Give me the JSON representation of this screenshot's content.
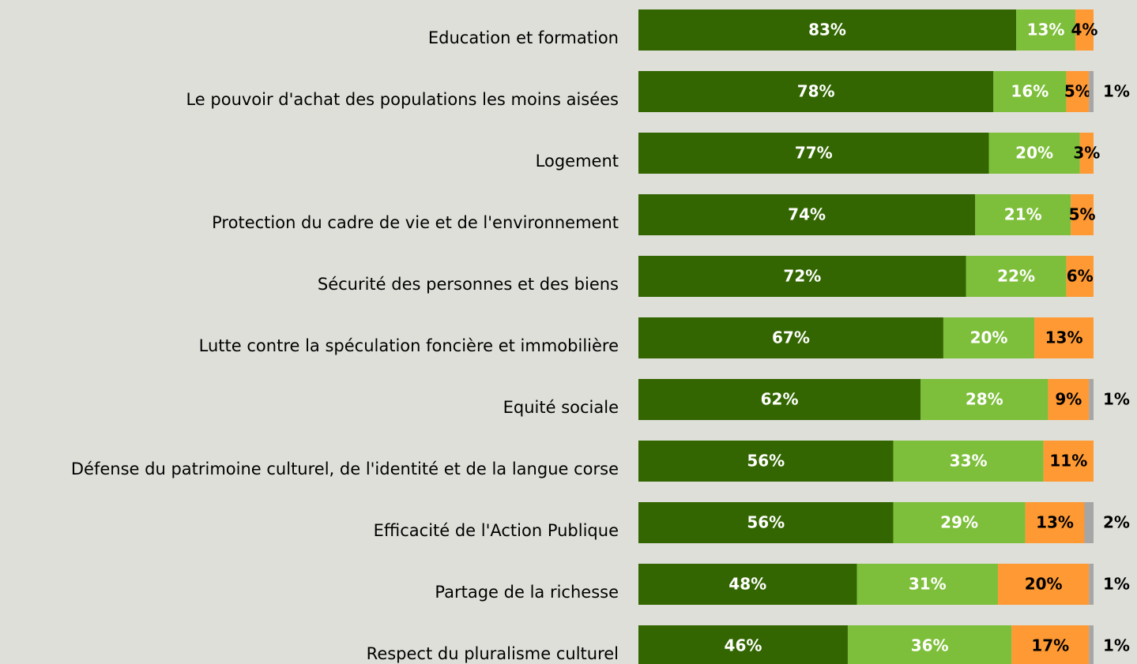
{
  "chart_data": {
    "type": "stacked-bar-horizontal",
    "categories": [
      "Education et formation",
      "Le pouvoir d'achat des populations les moins aisées",
      "Logement",
      "Protection du cadre de vie et de l'environnement",
      "Sécurité des personnes et des biens",
      "Lutte contre la spéculation foncière et immobilière",
      "Equité sociale",
      "Défense du patrimoine culturel, de l'identité et de la langue corse",
      "Efficacité de l'Action Publique",
      "Partage de la richesse",
      "Respect du pluralisme culturel"
    ],
    "xlim": [
      0,
      100
    ],
    "series": [
      {
        "color": "#336600",
        "values": [
          83,
          78,
          77,
          74,
          72,
          67,
          62,
          56,
          56,
          48,
          46
        ],
        "value_labels": [
          "83%",
          "78%",
          "77%",
          "74%",
          "72%",
          "67%",
          "62%",
          "56%",
          "56%",
          "48%",
          "46%"
        ]
      },
      {
        "color": "#7dbf3a",
        "values": [
          13,
          16,
          20,
          21,
          22,
          20,
          28,
          33,
          29,
          31,
          36
        ],
        "value_labels": [
          "13%",
          "16%",
          "20%",
          "21%",
          "22%",
          "20%",
          "28%",
          "33%",
          "29%",
          "31%",
          "36%"
        ]
      },
      {
        "color": "#ff9933",
        "values": [
          4,
          5,
          3,
          5,
          6,
          13,
          9,
          11,
          13,
          20,
          17
        ],
        "value_labels": [
          "4%",
          "5%",
          "3%",
          "5%",
          "6%",
          "13%",
          "9%",
          "11%",
          "13%",
          "20%",
          "17%"
        ]
      },
      {
        "color": "#a6a6a6",
        "values": [
          null,
          1,
          null,
          null,
          null,
          null,
          1,
          null,
          2,
          1,
          1
        ],
        "value_labels": [
          null,
          "1%",
          null,
          null,
          null,
          null,
          "1%",
          null,
          "2%",
          "1%",
          "1%"
        ]
      }
    ]
  }
}
